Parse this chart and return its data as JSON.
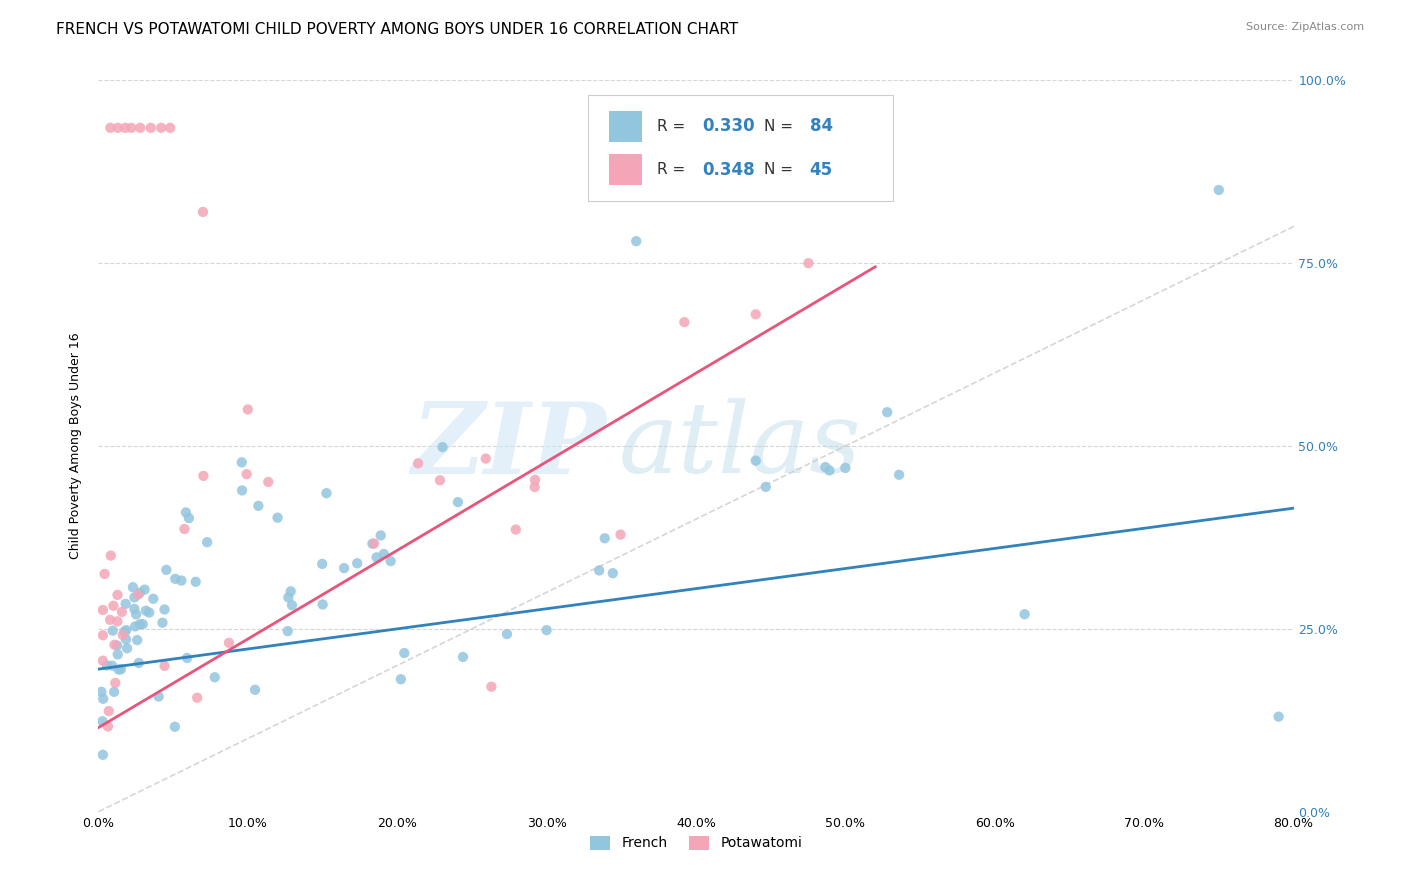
{
  "title": "FRENCH VS POTAWATOMI CHILD POVERTY AMONG BOYS UNDER 16 CORRELATION CHART",
  "source": "Source: ZipAtlas.com",
  "ylabel": "Child Poverty Among Boys Under 16",
  "xlim": [
    0,
    0.8
  ],
  "ylim": [
    0,
    1.0
  ],
  "watermark_zip": "ZIP",
  "watermark_atlas": "atlas",
  "french_R": "0.330",
  "french_N": "84",
  "potawatomi_R": "0.348",
  "potawatomi_N": "45",
  "french_color": "#92c5de",
  "potawatomi_color": "#f4a6b8",
  "french_line_color": "#3182bd",
  "potawatomi_line_color": "#e8547a",
  "diagonal_color": "#cccccc",
  "title_fontsize": 11,
  "axis_label_fontsize": 9,
  "tick_fontsize": 9,
  "legend_value_color": "#3182bd",
  "french_trend_x0": 0.0,
  "french_trend_x1": 0.8,
  "french_trend_y0": 0.195,
  "french_trend_y1": 0.415,
  "potawatomi_trend_x0": 0.0,
  "potawatomi_trend_x1": 0.52,
  "potawatomi_trend_y0": 0.115,
  "potawatomi_trend_y1": 0.745
}
